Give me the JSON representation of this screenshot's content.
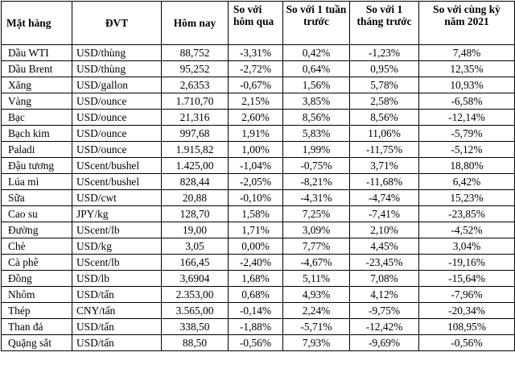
{
  "headers": [
    "Mặt hàng",
    "ĐVT",
    "Hôm nay",
    "So với hôm qua",
    "So với 1 tuần trước",
    "So với 1 tháng trước",
    "So với cùng kỳ năm 2021"
  ],
  "rows": [
    [
      "Dầu WTI",
      "USD/thùng",
      "88,752",
      "-3,31%",
      "0,42%",
      "-1,23%",
      "7,48%"
    ],
    [
      "Dầu Brent",
      "USD/thùng",
      "95,252",
      "-2,72%",
      "0,64%",
      "0,95%",
      "12,35%"
    ],
    [
      "Xăng",
      "USD/gallon",
      "2,6353",
      "-0,67%",
      "1,56%",
      "5,78%",
      "10,93%"
    ],
    [
      "Vàng",
      "USD/ounce",
      "1.710,70",
      "2,15%",
      "3,85%",
      "2,58%",
      "-6,58%"
    ],
    [
      "Bạc",
      "USD/ounce",
      "21,316",
      "2,60%",
      "8,56%",
      "8,56%",
      "-12,14%"
    ],
    [
      "Bạch kim",
      "USD/ounce",
      "997,68",
      "1,91%",
      "5,83%",
      "11,06%",
      "-5,79%"
    ],
    [
      "Paladi",
      "USD/ounce",
      "1.915,82",
      "1,00%",
      "1,99%",
      "-11,75%",
      "-5,12%"
    ],
    [
      "Đậu tương",
      "UScent/bushel",
      "1.425,00",
      "-1,04%",
      "-0,75%",
      "3,71%",
      "18,80%"
    ],
    [
      "Lúa mì",
      "UScent/bushel",
      "828,44",
      "-2,05%",
      "-8,21%",
      "-11,68%",
      "6,42%"
    ],
    [
      "Sữa",
      "USD/cwt",
      "20,88",
      "-0,10%",
      "-4,31%",
      "-4,74%",
      "15,23%"
    ],
    [
      "Cao su",
      "JPY/kg",
      "128,70",
      "1,58%",
      "7,25%",
      "-7,41%",
      "-23,85%"
    ],
    [
      "Đường",
      "UScent/lb",
      "19,00",
      "1,71%",
      "3,09%",
      "2,10%",
      "-4,52%"
    ],
    [
      "Chè",
      "USD/kg",
      "3,05",
      "0,00%",
      "7,77%",
      "4,45%",
      "3,04%"
    ],
    [
      "Cà phê",
      "UScent/lb",
      "166,45",
      "-2,40%",
      "-4,67%",
      "-23,45%",
      "-19,16%"
    ],
    [
      "Đồng",
      "USD/lb",
      "3,6904",
      "1,68%",
      "5,11%",
      "7,08%",
      "-15,64%"
    ],
    [
      "Nhôm",
      "USD/tấn",
      "2.353,00",
      "0,68%",
      "4,93%",
      "4,12%",
      "-7,96%"
    ],
    [
      "Thép",
      "CNY/tấn",
      "3.565,00",
      "-0,14%",
      "2,24%",
      "-9,75%",
      "-20,34%"
    ],
    [
      "Than đá",
      "USD/tấn",
      "338,50",
      "-1,88%",
      "-5,71%",
      "-12,42%",
      "108,95%"
    ],
    [
      "Quặng sắt",
      "USD/tấn",
      "88,50",
      "-0,56%",
      "7,93%",
      "-9,69%",
      "-0,56%"
    ]
  ]
}
